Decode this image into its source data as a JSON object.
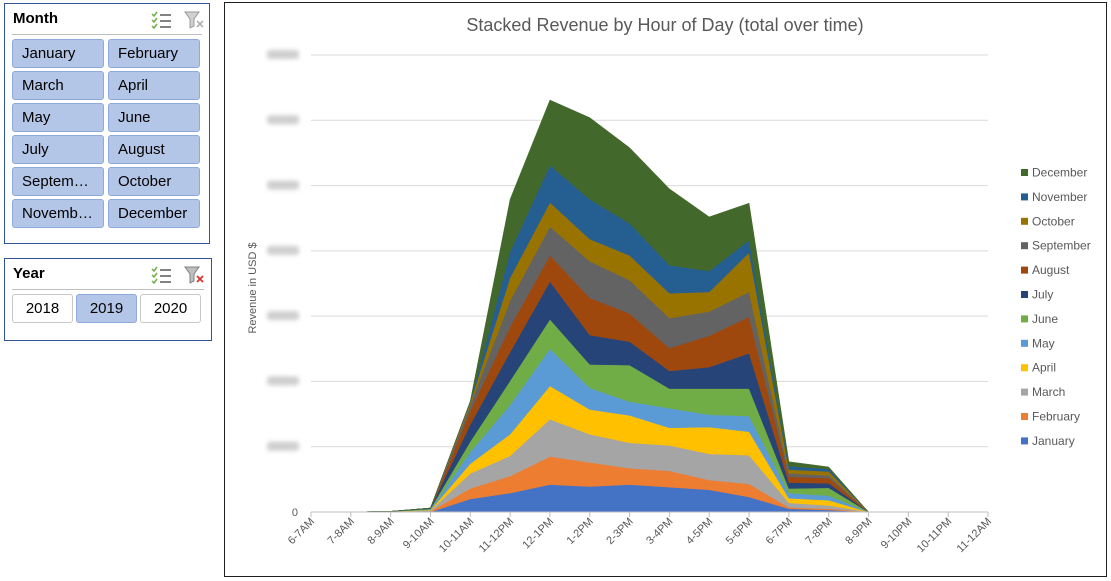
{
  "month_slicer": {
    "title": "Month",
    "multi_select_icon": "multi-select-icon",
    "clear_filter_icon": "clear-filter-icon",
    "items": [
      "January",
      "February",
      "March",
      "April",
      "May",
      "June",
      "July",
      "August",
      "Septem…",
      "October",
      "Novemb…",
      "December"
    ]
  },
  "year_slicer": {
    "title": "Year",
    "multi_select_icon": "multi-select-icon",
    "clear_filter_icon": "clear-filter-icon",
    "items": [
      {
        "label": "2018",
        "selected": false
      },
      {
        "label": "2019",
        "selected": true
      },
      {
        "label": "2020",
        "selected": false
      }
    ]
  },
  "chart_data": {
    "type": "area",
    "stacked": true,
    "title": "Stacked Revenue by Hour of Day (total over time)",
    "ylabel": "Revenue in USD $",
    "y_zero_label": "0",
    "y_tick_count": 7,
    "y_tick_labels_visible": false,
    "ylim": [
      0,
      7
    ],
    "grid": true,
    "legend": "right",
    "categories": [
      "6-7AM",
      "7-8AM",
      "8-9AM",
      "9-10AM",
      "10-11AM",
      "11-12PM",
      "12-1PM",
      "1-2PM",
      "2-3PM",
      "3-4PM",
      "4-5PM",
      "5-6PM",
      "6-7PM",
      "7-8PM",
      "8-9PM",
      "9-10PM",
      "10-11PM",
      "11-12AM"
    ],
    "series": [
      {
        "name": "January",
        "color": "#4472c4",
        "values": [
          0,
          0,
          0,
          0,
          0.2,
          0.29,
          0.42,
          0.39,
          0.42,
          0.38,
          0.34,
          0.23,
          0.05,
          0.03,
          0,
          0,
          0,
          0
        ]
      },
      {
        "name": "February",
        "color": "#ed7d31",
        "values": [
          0,
          0,
          0.01,
          0.01,
          0.16,
          0.26,
          0.43,
          0.37,
          0.25,
          0.25,
          0.15,
          0.2,
          0.02,
          0.02,
          0,
          0,
          0,
          0
        ]
      },
      {
        "name": "March",
        "color": "#a5a5a5",
        "values": [
          0,
          0,
          0,
          0.01,
          0.23,
          0.31,
          0.57,
          0.43,
          0.39,
          0.39,
          0.4,
          0.44,
          0.07,
          0.05,
          0,
          0,
          0,
          0
        ]
      },
      {
        "name": "April",
        "color": "#ffc000",
        "values": [
          0,
          0,
          0,
          0.01,
          0.15,
          0.33,
          0.51,
          0.38,
          0.42,
          0.27,
          0.41,
          0.36,
          0.07,
          0.08,
          0,
          0,
          0,
          0
        ]
      },
      {
        "name": "May",
        "color": "#5b9bd5",
        "values": [
          0,
          0,
          0,
          0.01,
          0.18,
          0.45,
          0.57,
          0.33,
          0.21,
          0.3,
          0.19,
          0.24,
          0.08,
          0.07,
          0,
          0,
          0,
          0
        ]
      },
      {
        "name": "June",
        "color": "#70ad47",
        "values": [
          0,
          0,
          0,
          0.01,
          0.16,
          0.37,
          0.45,
          0.36,
          0.56,
          0.3,
          0.4,
          0.42,
          0.07,
          0.12,
          0,
          0,
          0,
          0
        ]
      },
      {
        "name": "July",
        "color": "#264478",
        "values": [
          0,
          0,
          0,
          0.01,
          0.26,
          0.44,
          0.58,
          0.45,
          0.36,
          0.27,
          0.33,
          0.54,
          0.09,
          0.07,
          0,
          0,
          0,
          0
        ]
      },
      {
        "name": "August",
        "color": "#9e480e",
        "values": [
          0,
          0,
          0,
          0,
          0.21,
          0.39,
          0.4,
          0.57,
          0.43,
          0.35,
          0.48,
          0.56,
          0.09,
          0.08,
          0,
          0,
          0,
          0
        ]
      },
      {
        "name": "September",
        "color": "#636363",
        "values": [
          0,
          0,
          0,
          0,
          0.09,
          0.4,
          0.44,
          0.56,
          0.51,
          0.46,
          0.37,
          0.38,
          0.05,
          0.04,
          0,
          0,
          0,
          0
        ]
      },
      {
        "name": "October",
        "color": "#997300",
        "values": [
          0,
          0,
          0,
          0,
          0.04,
          0.35,
          0.37,
          0.34,
          0.38,
          0.38,
          0.3,
          0.6,
          0.06,
          0.06,
          0,
          0,
          0,
          0
        ]
      },
      {
        "name": "November",
        "color": "#255e91",
        "values": [
          0,
          0,
          0,
          0,
          0.01,
          0.4,
          0.57,
          0.61,
          0.49,
          0.43,
          0.32,
          0.19,
          0.05,
          0.04,
          0,
          0,
          0,
          0
        ]
      },
      {
        "name": "December",
        "color": "#43682b",
        "values": [
          0,
          0,
          0,
          0,
          0.01,
          0.8,
          1.0,
          1.25,
          1.16,
          1.17,
          0.83,
          0.57,
          0.07,
          0.03,
          0,
          0,
          0,
          0
        ]
      }
    ]
  }
}
